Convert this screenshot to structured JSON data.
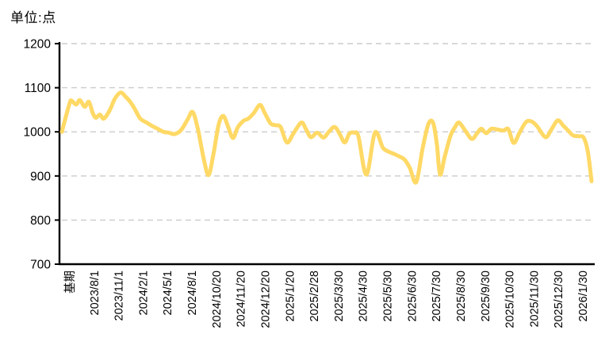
{
  "page": {
    "background": "#ffffff"
  },
  "chart_data": {
    "type": "line",
    "title": "单位:点",
    "xlabel": "",
    "ylabel": "",
    "ylim": [
      700,
      1200
    ],
    "y_ticks": [
      700,
      800,
      900,
      1000,
      1100,
      1200
    ],
    "x_tick_labels": [
      "基期",
      "2023/8/1",
      "2023/11/1",
      "2024/2/1",
      "2024/5/1",
      "2024/8/1",
      "2024/10/20",
      "2024/11/20",
      "2024/12/20",
      "2025/1/20",
      "2025/2/28",
      "2025/3/30",
      "2025/4/30",
      "2025/5/30",
      "2025/6/30",
      "2025/7/30",
      "2025/8/30",
      "2025/9/30",
      "2025/10/30",
      "2025/11/30",
      "2025/12/30",
      "2026/1/30"
    ],
    "grid": "horizontal-dashed",
    "legend": "none",
    "base_value": 1000,
    "colors": {
      "line": "#FFD966",
      "axis": "#000000",
      "gridline": "#CBCBCB",
      "text": "#000000"
    },
    "series": [
      {
        "name": "index",
        "color": "#FFD966",
        "smooth": true,
        "points": [
          [
            0.0,
            1000
          ],
          [
            0.007,
            1032
          ],
          [
            0.015,
            1066
          ],
          [
            0.018,
            1071
          ],
          [
            0.027,
            1062
          ],
          [
            0.034,
            1072
          ],
          [
            0.043,
            1057
          ],
          [
            0.051,
            1068
          ],
          [
            0.058,
            1044
          ],
          [
            0.064,
            1032
          ],
          [
            0.072,
            1039
          ],
          [
            0.079,
            1030
          ],
          [
            0.09,
            1048
          ],
          [
            0.1,
            1075
          ],
          [
            0.111,
            1089
          ],
          [
            0.12,
            1080
          ],
          [
            0.129,
            1068
          ],
          [
            0.138,
            1051
          ],
          [
            0.148,
            1030
          ],
          [
            0.16,
            1021
          ],
          [
            0.171,
            1013
          ],
          [
            0.181,
            1007
          ],
          [
            0.192,
            1000
          ],
          [
            0.202,
            998
          ],
          [
            0.213,
            995
          ],
          [
            0.225,
            1004
          ],
          [
            0.237,
            1027
          ],
          [
            0.247,
            1045
          ],
          [
            0.257,
            1005
          ],
          [
            0.268,
            938
          ],
          [
            0.277,
            902
          ],
          [
            0.286,
            948
          ],
          [
            0.296,
            1016
          ],
          [
            0.305,
            1036
          ],
          [
            0.314,
            1011
          ],
          [
            0.323,
            986
          ],
          [
            0.332,
            1010
          ],
          [
            0.343,
            1025
          ],
          [
            0.352,
            1030
          ],
          [
            0.362,
            1042
          ],
          [
            0.374,
            1061
          ],
          [
            0.383,
            1043
          ],
          [
            0.394,
            1019
          ],
          [
            0.404,
            1015
          ],
          [
            0.413,
            1011
          ],
          [
            0.425,
            976
          ],
          [
            0.437,
            996
          ],
          [
            0.452,
            1021
          ],
          [
            0.461,
            1006
          ],
          [
            0.47,
            988
          ],
          [
            0.482,
            998
          ],
          [
            0.494,
            987
          ],
          [
            0.504,
            1000
          ],
          [
            0.515,
            1011
          ],
          [
            0.525,
            994
          ],
          [
            0.534,
            976
          ],
          [
            0.543,
            996
          ],
          [
            0.552,
            998
          ],
          [
            0.56,
            989
          ],
          [
            0.575,
            903
          ],
          [
            0.591,
            998
          ],
          [
            0.606,
            964
          ],
          [
            0.617,
            955
          ],
          [
            0.627,
            950
          ],
          [
            0.636,
            945
          ],
          [
            0.647,
            937
          ],
          [
            0.657,
            918
          ],
          [
            0.669,
            886
          ],
          [
            0.681,
            962
          ],
          [
            0.692,
            1018
          ],
          [
            0.701,
            1020
          ],
          [
            0.708,
            972
          ],
          [
            0.714,
            903
          ],
          [
            0.723,
            945
          ],
          [
            0.734,
            992
          ],
          [
            0.743,
            1012
          ],
          [
            0.75,
            1021
          ],
          [
            0.762,
            1002
          ],
          [
            0.774,
            984
          ],
          [
            0.784,
            997
          ],
          [
            0.792,
            1007
          ],
          [
            0.801,
            997
          ],
          [
            0.811,
            1007
          ],
          [
            0.823,
            1005
          ],
          [
            0.834,
            1003
          ],
          [
            0.843,
            1006
          ],
          [
            0.853,
            975
          ],
          [
            0.864,
            998
          ],
          [
            0.876,
            1022
          ],
          [
            0.886,
            1024
          ],
          [
            0.897,
            1013
          ],
          [
            0.913,
            988
          ],
          [
            0.924,
            1005
          ],
          [
            0.936,
            1026
          ],
          [
            0.946,
            1015
          ],
          [
            0.955,
            1004
          ],
          [
            0.965,
            992
          ],
          [
            0.976,
            990
          ],
          [
            0.985,
            987
          ],
          [
            0.993,
            955
          ],
          [
            1.0,
            888
          ]
        ]
      }
    ]
  }
}
